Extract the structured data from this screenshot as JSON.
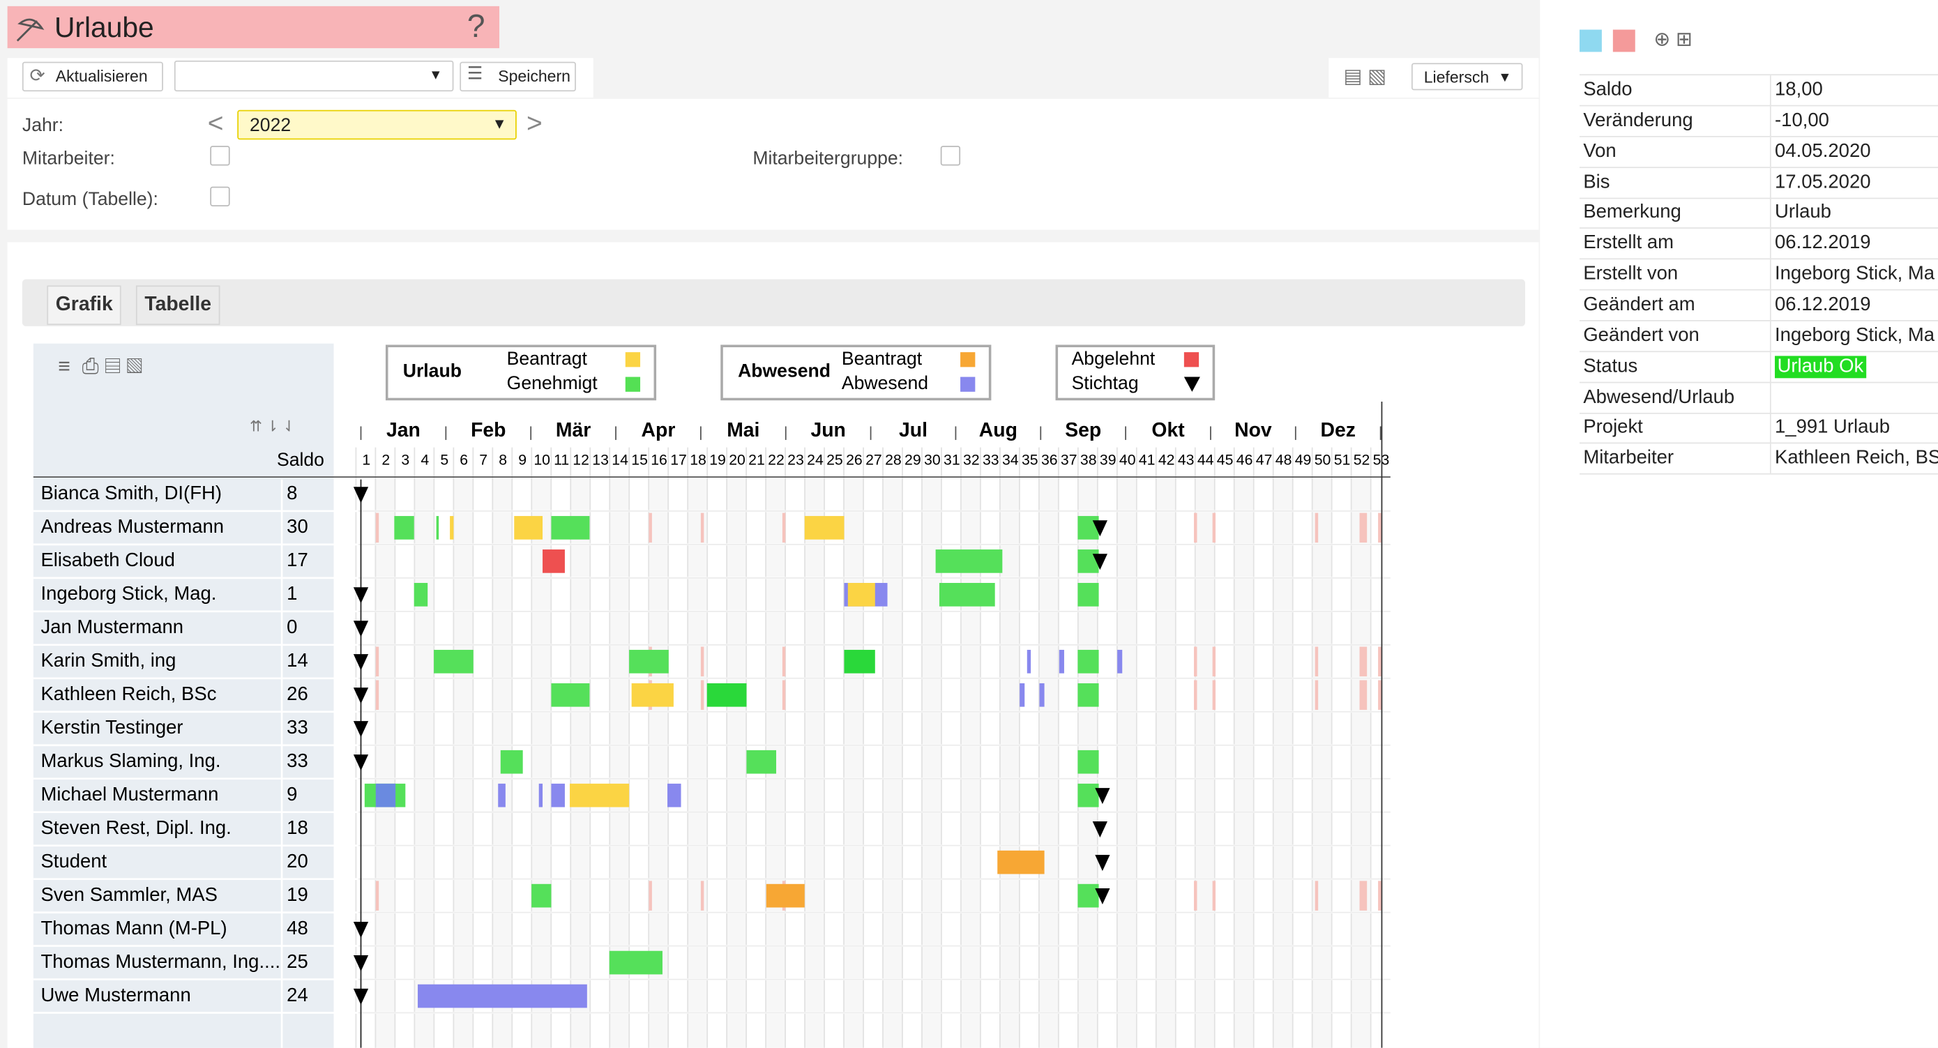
{
  "header": {
    "title": "Urlaube"
  },
  "toolbar": {
    "refresh": "Aktualisieren",
    "save": "Speichern",
    "export": "Liefersch"
  },
  "filters": {
    "year_label": "Jahr:",
    "year": "2022",
    "employee_label": "Mitarbeiter:",
    "group_label": "Mitarbeitergruppe:",
    "date_label": "Datum (Tabelle):"
  },
  "tabs": [
    "Grafik",
    "Tabelle"
  ],
  "legend": [
    {
      "title": "Urlaub",
      "items": [
        "Beantragt",
        "Genehmigt"
      ]
    },
    {
      "title": "Abwesend",
      "items": [
        "Beantragt",
        "Abwesend"
      ]
    },
    {
      "items": [
        "Abgelehnt",
        "Stichtag"
      ]
    }
  ],
  "gantt": {
    "saldo_header": "Saldo",
    "months": [
      "Jan",
      "Feb",
      "Mär",
      "Apr",
      "Mai",
      "Jun",
      "Jul",
      "Aug",
      "Sep",
      "Okt",
      "Nov",
      "Dez"
    ],
    "weeks": [
      1,
      2,
      3,
      4,
      5,
      6,
      7,
      8,
      9,
      10,
      11,
      12,
      13,
      14,
      15,
      16,
      17,
      18,
      19,
      20,
      21,
      22,
      23,
      24,
      25,
      26,
      27,
      28,
      29,
      30,
      31,
      32,
      33,
      34,
      35,
      36,
      37,
      38,
      39,
      40,
      41,
      42,
      43,
      44,
      45,
      46,
      47,
      48,
      49,
      50,
      51,
      52,
      53
    ],
    "employees": [
      {
        "name": "Bianca Smith, DI(FH)",
        "saldo": 8
      },
      {
        "name": "Andreas Mustermann",
        "saldo": 30
      },
      {
        "name": "Elisabeth Cloud",
        "saldo": 17
      },
      {
        "name": "Ingeborg Stick, Mag.",
        "saldo": 1
      },
      {
        "name": "Jan Mustermann",
        "saldo": 0
      },
      {
        "name": "Karin Smith, ing",
        "saldo": 14
      },
      {
        "name": "Kathleen Reich, BSc",
        "saldo": 26
      },
      {
        "name": "Kerstin Testinger",
        "saldo": 33
      },
      {
        "name": "Markus Slaming, Ing.",
        "saldo": 33
      },
      {
        "name": "Michael Mustermann",
        "saldo": 9
      },
      {
        "name": "Steven Rest, Dipl. Ing.",
        "saldo": 18
      },
      {
        "name": "Student",
        "saldo": 20
      },
      {
        "name": "Sven Sammler, MAS",
        "saldo": 19
      },
      {
        "name": "Thomas Mann (M-PL)",
        "saldo": 48
      },
      {
        "name": "Thomas Mustermann, Ing....",
        "saldo": 25
      },
      {
        "name": "Uwe Mustermann",
        "saldo": 24
      }
    ]
  },
  "details": [
    {
      "label": "Saldo",
      "value": "18,00"
    },
    {
      "label": "Veränderung",
      "value": "-10,00"
    },
    {
      "label": "Von",
      "value": "04.05.2020"
    },
    {
      "label": "Bis",
      "value": "17.05.2020"
    },
    {
      "label": "Bemerkung",
      "value": "Urlaub"
    },
    {
      "label": "Erstellt am",
      "value": "06.12.2019"
    },
    {
      "label": "Erstellt von",
      "value": "Ingeborg Stick, Ma"
    },
    {
      "label": "Geändert am",
      "value": "06.12.2019"
    },
    {
      "label": "Geändert von",
      "value": "Ingeborg Stick, Ma"
    },
    {
      "label": "Status",
      "value": "Urlaub Ok"
    },
    {
      "label": "Abwesend/Urlaub"
    },
    {
      "label": "Projekt",
      "value": "1_991 Urlaub"
    },
    {
      "label": "Mitarbeiter",
      "value": "Kathleen Reich, BS"
    }
  ]
}
